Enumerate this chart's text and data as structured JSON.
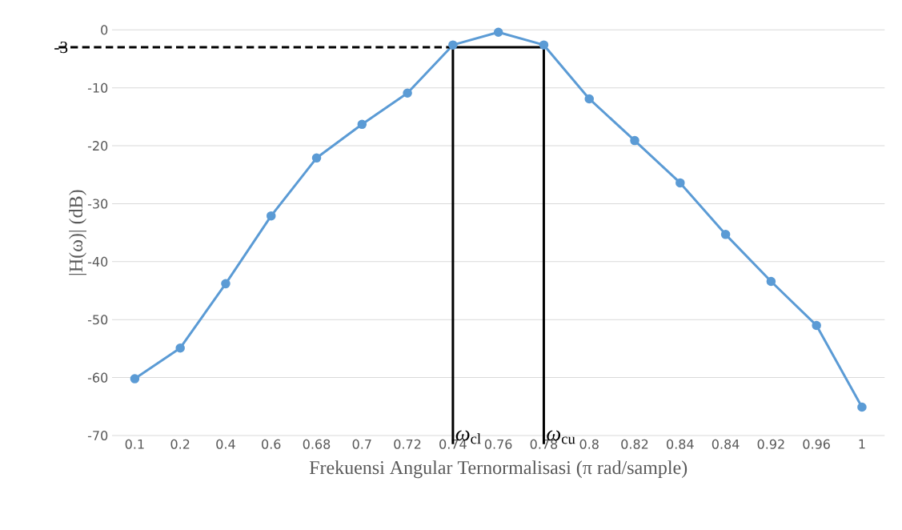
{
  "chart_data": {
    "type": "line",
    "xlabel": "Frekuensi Angular Ternormalisasi (π rad/sample)",
    "ylabel": "|H(ω)| (dB)",
    "categories": [
      "0.1",
      "0.2",
      "0.4",
      "0.6",
      "0.68",
      "0.7",
      "0.72",
      "0.74",
      "0.76",
      "0.78",
      "0.8",
      "0.82",
      "0.84",
      "0.84",
      "0.92",
      "0.96",
      "1"
    ],
    "series": [
      {
        "color": "#5b9bd5",
        "values": [
          -60.2,
          -54.9,
          -43.8,
          -32.1,
          -22.1,
          -16.3,
          -10.9,
          -2.6,
          -0.4,
          -2.6,
          -11.9,
          -19.1,
          -26.4,
          -35.3,
          -43.4,
          -51.0,
          -65.1
        ]
      }
    ],
    "ylim": [
      -70,
      0
    ],
    "yticks": [
      -70,
      -60,
      -50,
      -40,
      -30,
      -20,
      -10,
      0
    ],
    "grid": "y",
    "marker": "circle",
    "line_style": "solid",
    "ref_lines": [
      {
        "axis": "y",
        "value": -3,
        "label": "-3",
        "color": "#000000",
        "line_style": "dashed"
      },
      {
        "axis": "y",
        "value": -3,
        "color": "#000000",
        "line_style": "solid"
      },
      {
        "axis": "x",
        "value": "0.74",
        "label": "*ω*$_{cl}$",
        "color": "#000000",
        "line_style": "solid"
      },
      {
        "axis": "x",
        "value": "0.78",
        "label": "*ω*$_{cu}$",
        "color": "#000000",
        "line_style": "solid"
      }
    ]
  }
}
